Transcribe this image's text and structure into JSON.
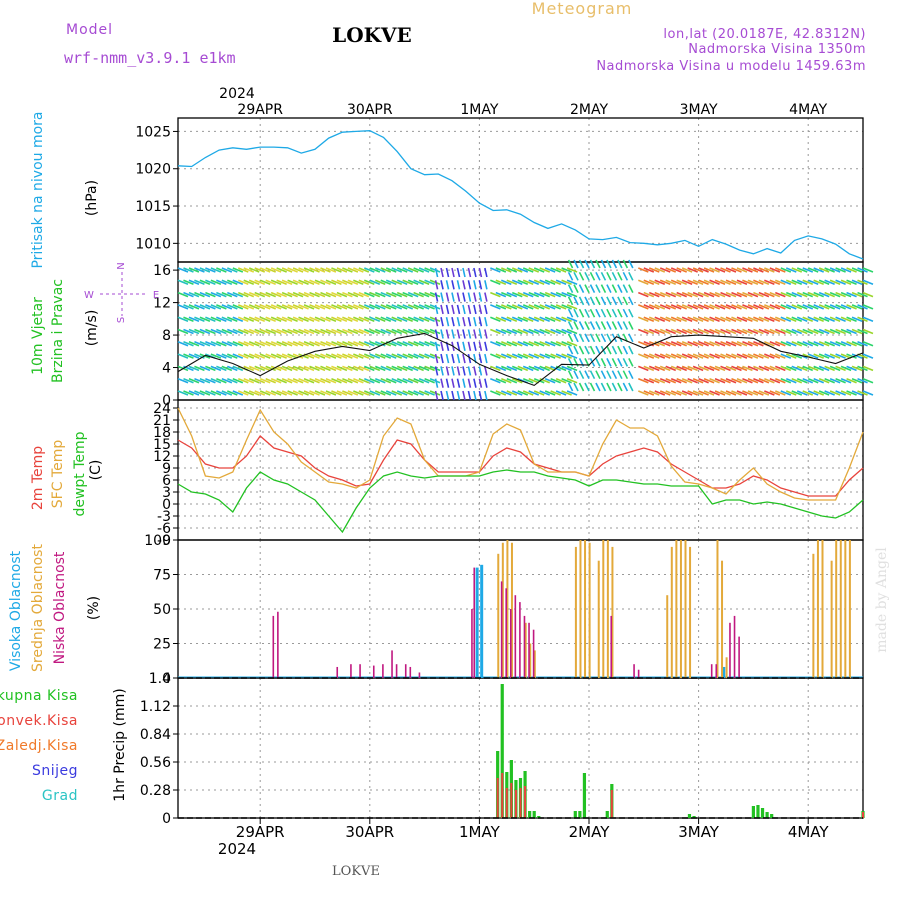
{
  "header": {
    "model_label": "Model",
    "model_name": "wrf-nmm_v3.9.1 e1km",
    "station": "LOKVE",
    "product": "Meteogram",
    "coords": "lon,lat (20.0187E, 42.8312N)",
    "elevation": "Nadmorska Visina 1350m",
    "model_elevation": "Nadmorska Visina u modelu 1459.63m",
    "footer_station": "LOKVE",
    "credit": "made by Angel"
  },
  "colors": {
    "pressure": "#1ea9e6",
    "temp2m": "#e8433c",
    "sfc_temp": "#e3a93a",
    "dewpt": "#22c122",
    "high_cloud": "#1ea9e6",
    "mid_cloud": "#e3a93a",
    "low_cloud": "#c01880",
    "total_precip": "#22c122",
    "conv_precip": "#e8433c",
    "frozen_precip": "#f07a2a",
    "snow": "#3b3bdf",
    "hail": "#2bc4c4",
    "header_purple": "#a64bd3",
    "header_gold": "#e8be6a"
  },
  "time_axis": {
    "year": "2024",
    "days": [
      "29APR",
      "30APR",
      "1MAY",
      "2MAY",
      "3MAY",
      "4MAY"
    ],
    "start_hour": 0,
    "end_hour": 150,
    "day_hours": [
      18,
      42,
      66,
      90,
      114,
      138
    ]
  },
  "chart_data": [
    {
      "type": "line",
      "panel": "pressure",
      "title": "Pritisak na nivou mora",
      "ylabel": "(hPa)",
      "ylim": [
        1007.5,
        1026.8
      ],
      "yticks": [
        1010,
        1015,
        1020,
        1025
      ],
      "grid": true,
      "x": [
        0,
        3,
        6,
        9,
        12,
        15,
        18,
        21,
        24,
        27,
        30,
        33,
        36,
        39,
        42,
        45,
        48,
        51,
        54,
        57,
        60,
        63,
        66,
        69,
        72,
        75,
        78,
        81,
        84,
        87,
        90,
        93,
        96,
        99,
        102,
        105,
        108,
        111,
        114,
        117,
        120,
        123,
        126,
        129,
        132,
        135,
        138,
        141,
        144,
        147,
        150
      ],
      "series": [
        {
          "values": [
            1020.4,
            1020.3,
            1021.5,
            1022.5,
            1022.8,
            1022.6,
            1022.9,
            1022.9,
            1022.8,
            1022.1,
            1022.6,
            1024.1,
            1024.9,
            1025.0,
            1025.1,
            1024.2,
            1022.3,
            1020.0,
            1019.2,
            1019.3,
            1018.4,
            1017.0,
            1015.4,
            1014.4,
            1014.5,
            1013.9,
            1012.8,
            1012.0,
            1012.6,
            1011.8,
            1010.6,
            1010.5,
            1010.8,
            1010.1,
            1010.0,
            1009.8,
            1010.0,
            1010.4,
            1009.6,
            1010.5,
            1009.9,
            1009.1,
            1008.6,
            1009.3,
            1008.7,
            1010.4,
            1011.0,
            1010.6,
            1009.9,
            1008.6,
            1007.9
          ]
        }
      ]
    },
    {
      "type": "line",
      "panel": "wind",
      "title": "10m Vjetar",
      "subtitle": "Brzina i Pravac",
      "ylabel": "(m/s)",
      "compass_labels": [
        "N",
        "S",
        "E",
        "W"
      ],
      "ylim": [
        0,
        17
      ],
      "yticks": [
        0,
        4,
        8,
        12,
        16
      ],
      "grid": true,
      "x": [
        0,
        6,
        12,
        18,
        24,
        30,
        36,
        42,
        48,
        54,
        60,
        66,
        72,
        78,
        84,
        90,
        96,
        102,
        108,
        114,
        120,
        126,
        132,
        138,
        144,
        150
      ],
      "series": [
        {
          "values": [
            3.5,
            5.5,
            4.5,
            3.0,
            4.8,
            6.0,
            6.6,
            6.1,
            7.6,
            8.2,
            6.7,
            4.4,
            3.0,
            1.8,
            4.4,
            4.3,
            7.8,
            6.4,
            7.8,
            8.0,
            7.8,
            7.6,
            6.0,
            5.3,
            4.5,
            5.8
          ]
        }
      ]
    },
    {
      "type": "line",
      "panel": "temperature",
      "title": "2m Temp",
      "subtitle": "SFC Temp",
      "subtitle2": "dewpt Temp",
      "ylabel": "(C)",
      "ylim": [
        -9,
        26
      ],
      "yticks": [
        -9,
        -6,
        -3,
        0,
        3,
        6,
        9,
        12,
        15,
        18,
        21,
        24
      ],
      "grid": true,
      "x": [
        0,
        3,
        6,
        9,
        12,
        15,
        18,
        21,
        24,
        27,
        30,
        33,
        36,
        39,
        42,
        45,
        48,
        51,
        54,
        57,
        60,
        63,
        66,
        69,
        72,
        75,
        78,
        81,
        84,
        87,
        90,
        93,
        96,
        99,
        102,
        105,
        108,
        111,
        114,
        117,
        120,
        123,
        126,
        129,
        132,
        135,
        138,
        141,
        144,
        147,
        150
      ],
      "series": [
        {
          "name": "2m Temp",
          "values": [
            16.0,
            14.0,
            10.0,
            9.0,
            9.0,
            12.0,
            17.0,
            14.0,
            13.0,
            12.0,
            9.0,
            7.0,
            6.0,
            4.5,
            5.0,
            11.0,
            16.0,
            15.0,
            11.0,
            8.0,
            8.0,
            8.0,
            8.0,
            12.0,
            14.0,
            13.0,
            10.0,
            9.0,
            8.0,
            8.0,
            7.0,
            10.0,
            12.0,
            13.0,
            14.0,
            13.0,
            10.0,
            8.0,
            6.0,
            4.0,
            4.0,
            5.0,
            7.0,
            6.0,
            4.0,
            3.0,
            2.0,
            2.0,
            2.0,
            6.0,
            9.0
          ]
        },
        {
          "name": "SFC Temp",
          "values": [
            24.0,
            17.0,
            7.0,
            6.5,
            8.0,
            16.0,
            23.5,
            18.0,
            15.0,
            10.5,
            8.0,
            5.5,
            5.0,
            4.0,
            6.0,
            17.0,
            21.5,
            20.0,
            11.0,
            7.0,
            7.0,
            7.0,
            8.0,
            17.5,
            20.0,
            18.5,
            10.0,
            8.0,
            8.0,
            8.0,
            7.0,
            15.0,
            21.0,
            19.0,
            19.0,
            17.0,
            9.5,
            5.5,
            5.0,
            4.0,
            2.5,
            6.0,
            9.0,
            5.0,
            3.0,
            1.5,
            1.0,
            1.0,
            1.0,
            9.0,
            18.0
          ]
        },
        {
          "name": "dewpt Temp",
          "values": [
            5.0,
            3.0,
            2.5,
            1.0,
            -2.0,
            4.0,
            8.0,
            6.0,
            5.0,
            3.0,
            1.0,
            -3.0,
            -7.0,
            -1.0,
            4.0,
            7.0,
            8.0,
            7.0,
            6.5,
            7.0,
            7.0,
            7.0,
            7.0,
            8.0,
            8.5,
            8.0,
            8.0,
            7.0,
            6.5,
            6.0,
            4.5,
            6.0,
            6.0,
            5.5,
            5.0,
            5.0,
            4.5,
            4.5,
            4.5,
            0.0,
            1.0,
            1.0,
            0.0,
            0.5,
            0.0,
            -1.0,
            -2.0,
            -3.0,
            -3.5,
            -2.0,
            1.0
          ]
        }
      ]
    },
    {
      "type": "bar",
      "panel": "cloud",
      "title": "Visoka Oblacnost",
      "subtitle": "Srednja Oblacnost",
      "subtitle2": "Niska Oblacnost",
      "ylabel": "(%)",
      "ylim": [
        0,
        100
      ],
      "yticks": [
        0,
        25,
        50,
        75,
        100
      ],
      "grid": true,
      "series": [
        {
          "name": "Visoka Oblacnost",
          "x": [
            65.5,
            66.5,
            119.5
          ],
          "values": [
            80,
            82,
            8
          ]
        },
        {
          "name": "Srednja Oblacnost",
          "x": [
            70.0,
            71.0,
            72.0,
            73.0,
            76.0,
            77.0,
            78.0,
            87.0,
            88.0,
            89.0,
            90.0,
            92.0,
            93.0,
            94.0,
            95.0,
            107.0,
            108.0,
            109.0,
            110.0,
            111.0,
            112.0,
            118.0,
            119.0,
            120.0,
            139.0,
            140.0,
            141.0,
            143.0,
            144.0,
            145.0,
            146.0,
            147.0
          ],
          "values": [
            90,
            98,
            100,
            98,
            40,
            25,
            20,
            95,
            100,
            100,
            98,
            85,
            100,
            100,
            95,
            60,
            95,
            100,
            100,
            100,
            95,
            100,
            85,
            15,
            90,
            100,
            100,
            85,
            100,
            100,
            100,
            100
          ]
        },
        {
          "name": "Niska Oblacnost",
          "x": [
            21.0,
            22.0,
            35.0,
            38.0,
            40.0,
            43.0,
            45.0,
            47.0,
            48.0,
            50.0,
            51.0,
            53.0,
            64.5,
            65.0,
            71.0,
            72.0,
            73.0,
            74.0,
            75.0,
            76.0,
            77.0,
            78.0,
            95.0,
            100.0,
            101.0,
            117.0,
            118.0,
            121.0,
            122.0,
            123.0
          ],
          "values": [
            45,
            48,
            8,
            10,
            10,
            9,
            10,
            20,
            10,
            10,
            8,
            4,
            50,
            80,
            70,
            65,
            50,
            60,
            55,
            45,
            40,
            35,
            45,
            10,
            6,
            10,
            10,
            40,
            45,
            30
          ]
        }
      ]
    },
    {
      "type": "bar",
      "panel": "precip",
      "title": "Ukupna Kisa",
      "subtitle": "Konvek.Kisa",
      "subtitle2": "Zaledj.Kisa",
      "subtitle3": "Snijeg",
      "subtitle4": "Grad",
      "ylabel": "1hr Precip (mm)",
      "ylim": [
        0,
        1.4
      ],
      "yticks": [
        0,
        0.28,
        0.56,
        0.84,
        1.12,
        1.4
      ],
      "grid": true,
      "series": [
        {
          "name": "Ukupna Kisa",
          "x": [
            70,
            71,
            72,
            73,
            74,
            75,
            76,
            77,
            78,
            79,
            87,
            88,
            89,
            94,
            95,
            112,
            113,
            126,
            127,
            128,
            129,
            130,
            150
          ],
          "values": [
            0.67,
            1.34,
            0.46,
            0.58,
            0.38,
            0.4,
            0.47,
            0.07,
            0.07,
            0.02,
            0.07,
            0.07,
            0.45,
            0.07,
            0.34,
            0.04,
            0.02,
            0.12,
            0.13,
            0.1,
            0.06,
            0.04,
            0.07
          ]
        },
        {
          "name": "Konvek.Kisa",
          "x": [
            70,
            71,
            72,
            73,
            74,
            75,
            76,
            95,
            150
          ],
          "values": [
            0.4,
            0.45,
            0.3,
            0.35,
            0.28,
            0.3,
            0.32,
            0.28,
            0.06
          ]
        }
      ]
    }
  ]
}
